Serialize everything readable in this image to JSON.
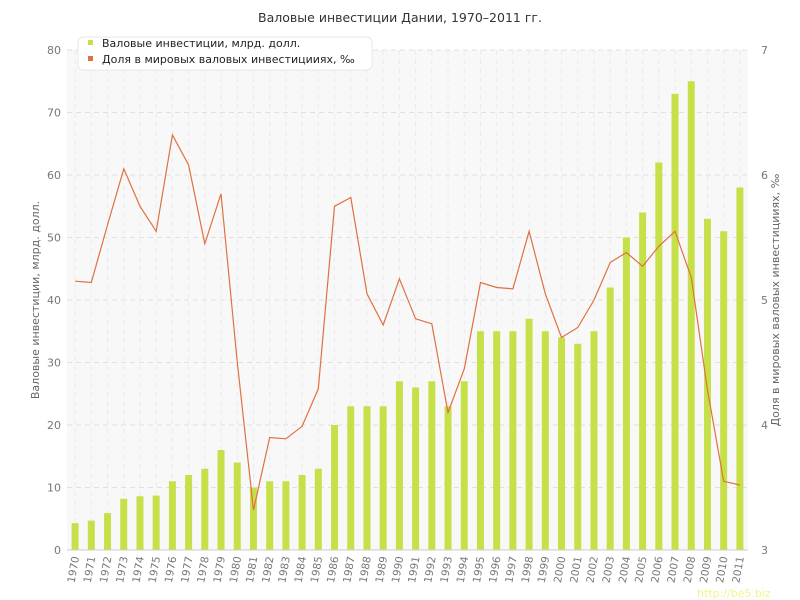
{
  "chart_data": {
    "type": "bar",
    "title": "Валовые инвестиции Дании, 1970–2011 гг.",
    "categories": [
      "1970",
      "1971",
      "1972",
      "1973",
      "1974",
      "1975",
      "1976",
      "1977",
      "1978",
      "1979",
      "1980",
      "1981",
      "1982",
      "1983",
      "1984",
      "1985",
      "1986",
      "1987",
      "1988",
      "1989",
      "1990",
      "1991",
      "1992",
      "1993",
      "1994",
      "1995",
      "1996",
      "1997",
      "1998",
      "1999",
      "2000",
      "2001",
      "2002",
      "2003",
      "2004",
      "2005",
      "2006",
      "2007",
      "2008",
      "2009",
      "2010",
      "2011"
    ],
    "series": [
      {
        "name": "Валовые инвестиции, млрд. долл.",
        "type": "bar",
        "axis": "left",
        "color": "#c6e04a",
        "values": [
          4.3,
          4.7,
          5.9,
          8.2,
          8.6,
          8.7,
          11,
          12,
          13,
          16,
          14,
          10,
          11,
          11,
          12,
          13,
          20,
          23,
          23,
          23,
          27,
          26,
          27,
          23,
          27,
          35,
          35,
          35,
          37,
          35,
          34,
          33,
          35,
          42,
          50,
          54,
          62,
          73,
          75,
          53,
          51,
          58
        ]
      },
      {
        "name": "Доля в мировых валовых инвестицииях, ‰",
        "type": "line",
        "axis": "right",
        "color": "#e07040",
        "values": [
          5.15,
          5.14,
          5.6,
          6.05,
          5.75,
          5.55,
          6.32,
          6.08,
          5.45,
          5.85,
          4.5,
          3.32,
          3.9,
          3.89,
          3.99,
          4.29,
          5.75,
          5.82,
          5.05,
          4.8,
          5.17,
          4.85,
          4.81,
          4.1,
          4.45,
          5.14,
          5.1,
          5.09,
          5.55,
          5.05,
          4.7,
          4.78,
          5.0,
          5.3,
          5.38,
          5.27,
          5.43,
          5.55,
          5.18,
          4.28,
          3.55,
          3.52
        ]
      }
    ],
    "ylabel": "Валовые инвестиции, млрд. долл.",
    "ylabel_right": "Доля в мировых валовых инвестицииях, ‰",
    "ylim": [
      0,
      80
    ],
    "ylim_right": [
      3,
      7
    ],
    "yticks": [
      0,
      10,
      20,
      30,
      40,
      50,
      60,
      70,
      80
    ],
    "yticks_right": [
      3,
      4,
      5,
      6,
      7
    ],
    "grid": true,
    "legend": "top-left"
  },
  "watermark": "http://be5.biz"
}
